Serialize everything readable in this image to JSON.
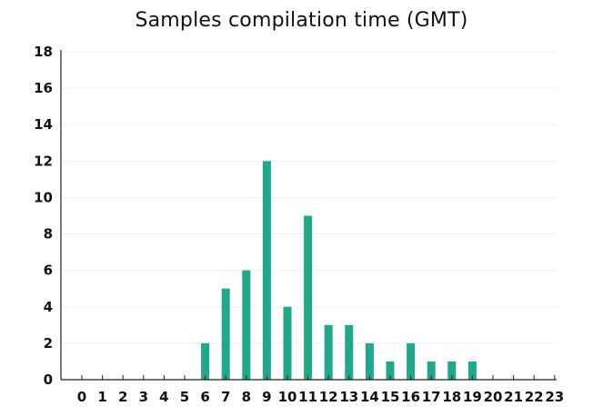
{
  "chart_data": {
    "type": "bar",
    "title": "Samples compilation time (GMT)",
    "xlabel": "",
    "ylabel": "",
    "categories": [
      "0",
      "1",
      "2",
      "3",
      "4",
      "5",
      "6",
      "7",
      "8",
      "9",
      "10",
      "11",
      "12",
      "13",
      "14",
      "15",
      "16",
      "17",
      "18",
      "19",
      "20",
      "21",
      "22",
      "23"
    ],
    "values": [
      0,
      0,
      0,
      0,
      0,
      0,
      2,
      5,
      6,
      12,
      4,
      9,
      3,
      3,
      2,
      1,
      2,
      1,
      1,
      1,
      0,
      0,
      0,
      0
    ],
    "ylim": [
      0,
      18
    ],
    "yticks": [
      0,
      2,
      4,
      6,
      8,
      10,
      12,
      14,
      16,
      18
    ],
    "bar_color": "#1fa98a",
    "grid": true,
    "legend": "none"
  }
}
